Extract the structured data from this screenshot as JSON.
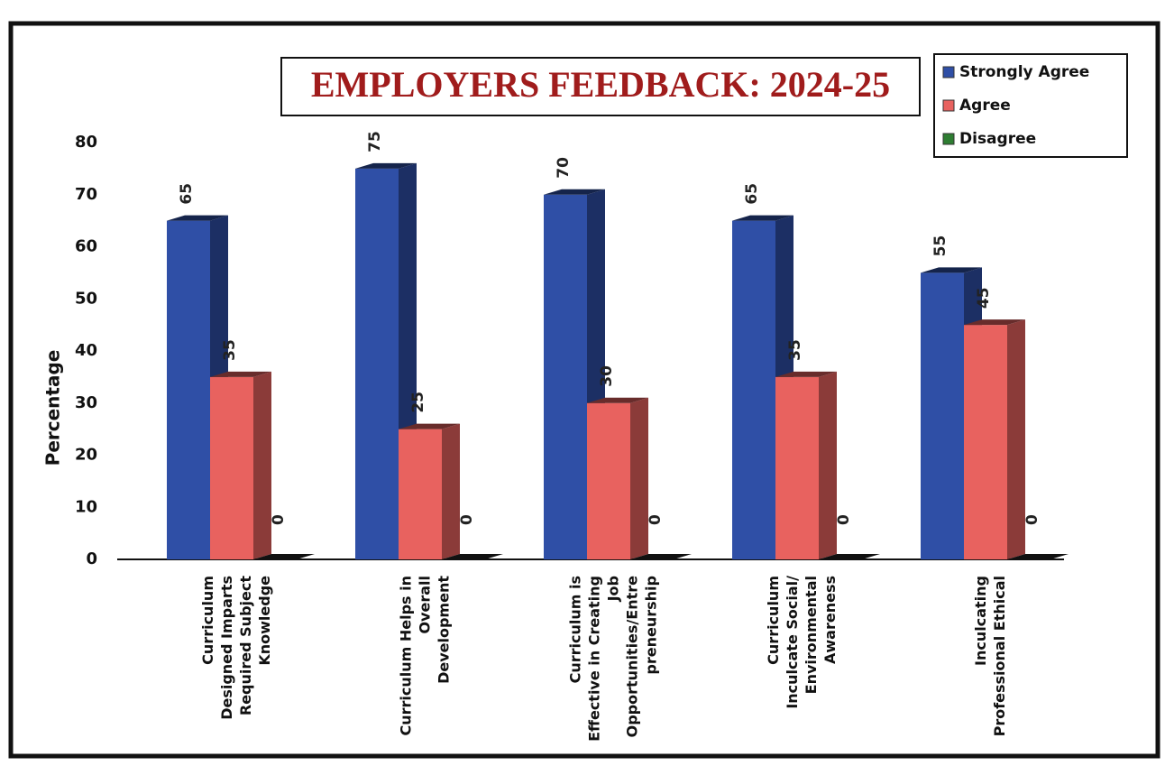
{
  "chart_data": {
    "type": "bar3d",
    "title": "EMPLOYERS FEEDBACK: 2024-25",
    "y_label": "Percentage",
    "categories": [
      [
        "Curriculum",
        "Designed Imparts",
        "Required Subject",
        "Knowledge"
      ],
      [
        "Curriculum Helps in",
        "Overall",
        "Development"
      ],
      [
        "Curriculum is",
        "Effective in Creating",
        "Job",
        "Opportunities/Entre",
        "preneurship"
      ],
      [
        "Curriculum",
        "Inculcate Social/",
        "Environmental",
        "Awareness"
      ],
      [
        "Inculcating",
        "Professional Ethical"
      ]
    ],
    "series": [
      {
        "name": "Strongly Agree",
        "color": "#2f4fa6",
        "values": [
          65,
          75,
          70,
          65,
          55
        ]
      },
      {
        "name": "Agree",
        "color": "#e8625f",
        "values": [
          35,
          25,
          30,
          35,
          45
        ]
      },
      {
        "name": "Disagree",
        "color": "#2e7d32",
        "values": [
          0,
          0,
          0,
          0,
          0
        ]
      }
    ],
    "ylim": [
      0,
      80
    ],
    "yticks": [
      0,
      10,
      20,
      30,
      40,
      50,
      60,
      70,
      80
    ],
    "legend": "top-right"
  }
}
